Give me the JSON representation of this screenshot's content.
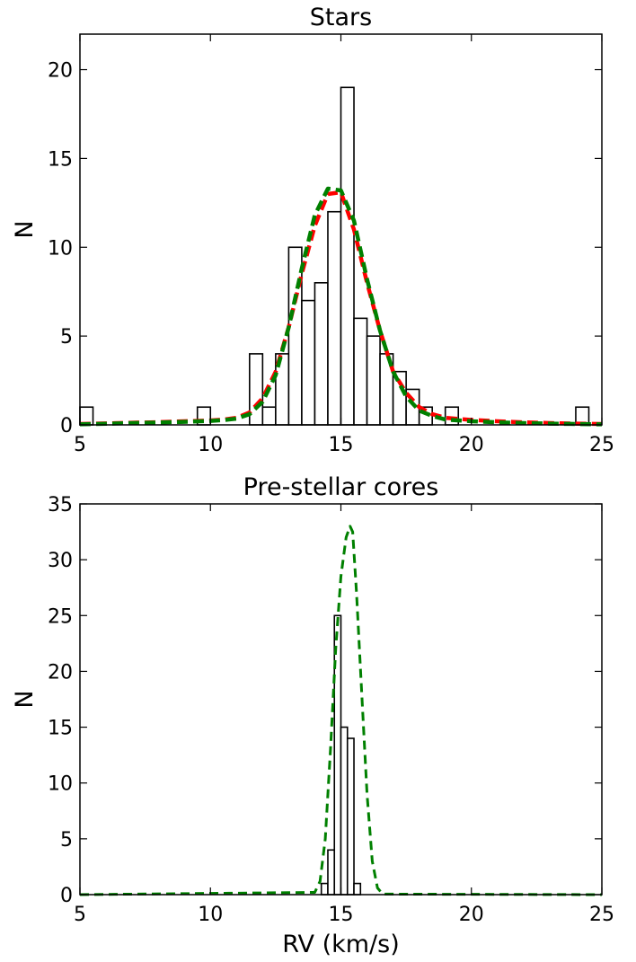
{
  "chart_data": [
    {
      "type": "bar",
      "title": "Stars",
      "xlabel": "",
      "ylabel": "N",
      "xlim": [
        5,
        25
      ],
      "ylim": [
        0,
        22
      ],
      "xticks": [
        5,
        10,
        15,
        20,
        25
      ],
      "yticks": [
        0,
        5,
        10,
        15,
        20
      ],
      "bin_width": 0.5,
      "histogram": [
        {
          "x0": 5.0,
          "value": 1
        },
        {
          "x0": 9.5,
          "value": 1
        },
        {
          "x0": 11.5,
          "value": 4
        },
        {
          "x0": 12.0,
          "value": 1
        },
        {
          "x0": 12.5,
          "value": 4
        },
        {
          "x0": 13.0,
          "value": 10
        },
        {
          "x0": 13.5,
          "value": 7
        },
        {
          "x0": 14.0,
          "value": 8
        },
        {
          "x0": 14.5,
          "value": 12
        },
        {
          "x0": 15.0,
          "value": 19
        },
        {
          "x0": 15.5,
          "value": 6
        },
        {
          "x0": 16.0,
          "value": 5
        },
        {
          "x0": 16.5,
          "value": 4
        },
        {
          "x0": 17.0,
          "value": 3
        },
        {
          "x0": 17.5,
          "value": 2
        },
        {
          "x0": 18.0,
          "value": 1
        },
        {
          "x0": 19.0,
          "value": 1
        },
        {
          "x0": 24.0,
          "value": 1
        }
      ],
      "series": [
        {
          "color": "#ff0000",
          "style": "dashed",
          "x": [
            5,
            6,
            7,
            8,
            9,
            10,
            10.5,
            11,
            11.5,
            12,
            12.5,
            13,
            13.5,
            14,
            14.5,
            15,
            15.5,
            16,
            16.5,
            17,
            17.5,
            18,
            18.5,
            19,
            20,
            21,
            22,
            23,
            24,
            25
          ],
          "y": [
            0.05,
            0.08,
            0.12,
            0.15,
            0.2,
            0.25,
            0.3,
            0.4,
            0.7,
            1.5,
            3.0,
            5.5,
            8.5,
            11.2,
            13.0,
            13.1,
            11.0,
            8.0,
            5.3,
            3.0,
            1.8,
            1.0,
            0.6,
            0.4,
            0.28,
            0.2,
            0.14,
            0.1,
            0.07,
            0.05
          ]
        },
        {
          "color": "#008000",
          "style": "dashed",
          "x": [
            5,
            6,
            7,
            8,
            9,
            10,
            10.5,
            11,
            11.5,
            12,
            12.5,
            13,
            13.5,
            14,
            14.5,
            15,
            15.5,
            16,
            16.5,
            17,
            17.5,
            18,
            18.5,
            19,
            20,
            21,
            22,
            23,
            24,
            25
          ],
          "y": [
            0.03,
            0.06,
            0.1,
            0.13,
            0.17,
            0.22,
            0.27,
            0.35,
            0.6,
            1.3,
            2.8,
            5.5,
            8.8,
            11.8,
            13.3,
            13.2,
            11.5,
            8.2,
            5.3,
            3.0,
            1.6,
            0.8,
            0.5,
            0.3,
            0.2,
            0.14,
            0.1,
            0.07,
            0.05,
            0.03
          ]
        }
      ]
    },
    {
      "type": "bar",
      "title": "Pre-stellar cores",
      "xlabel": "RV (km/s)",
      "ylabel": "N",
      "xlim": [
        5,
        25
      ],
      "ylim": [
        0,
        35
      ],
      "xticks": [
        5,
        10,
        15,
        20,
        25
      ],
      "yticks": [
        0,
        5,
        10,
        15,
        20,
        25,
        30,
        35
      ],
      "bin_width": 0.25,
      "histogram": [
        {
          "x0": 14.25,
          "value": 1
        },
        {
          "x0": 14.5,
          "value": 4
        },
        {
          "x0": 14.75,
          "value": 25
        },
        {
          "x0": 15.0,
          "value": 15
        },
        {
          "x0": 15.25,
          "value": 14
        },
        {
          "x0": 15.5,
          "value": 1
        }
      ],
      "series": [
        {
          "color": "#008000",
          "style": "dashed",
          "x": [
            5,
            14.0,
            14.2,
            14.4,
            14.6,
            14.8,
            15.0,
            15.2,
            15.35,
            15.45,
            15.6,
            15.8,
            16.0,
            16.2,
            16.4,
            16.6,
            25
          ],
          "y": [
            0,
            0.2,
            1.2,
            5.0,
            13.0,
            22.0,
            28.5,
            32.0,
            33.0,
            32.5,
            27.0,
            18.0,
            9.0,
            3.0,
            0.6,
            0.05,
            0
          ]
        }
      ]
    }
  ]
}
